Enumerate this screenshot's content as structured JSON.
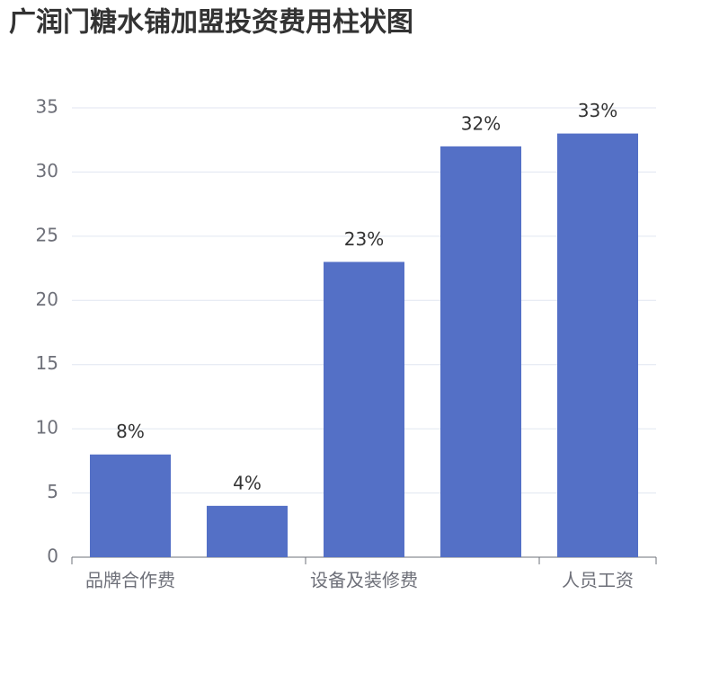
{
  "chart_data": {
    "type": "bar",
    "title": "广润门糖水铺加盟投资费用柱状图",
    "categories": [
      "品牌合作费",
      null,
      "设备及装修费",
      null,
      "人员工资"
    ],
    "values": [
      8,
      4,
      23,
      32,
      33
    ],
    "value_labels": [
      "8%",
      "4%",
      "23%",
      "32%",
      "33%"
    ],
    "color": "#5470c6",
    "ylim": [
      0,
      35
    ],
    "yticks": [
      0,
      5,
      10,
      15,
      20,
      25,
      30,
      35
    ],
    "grid": true
  }
}
